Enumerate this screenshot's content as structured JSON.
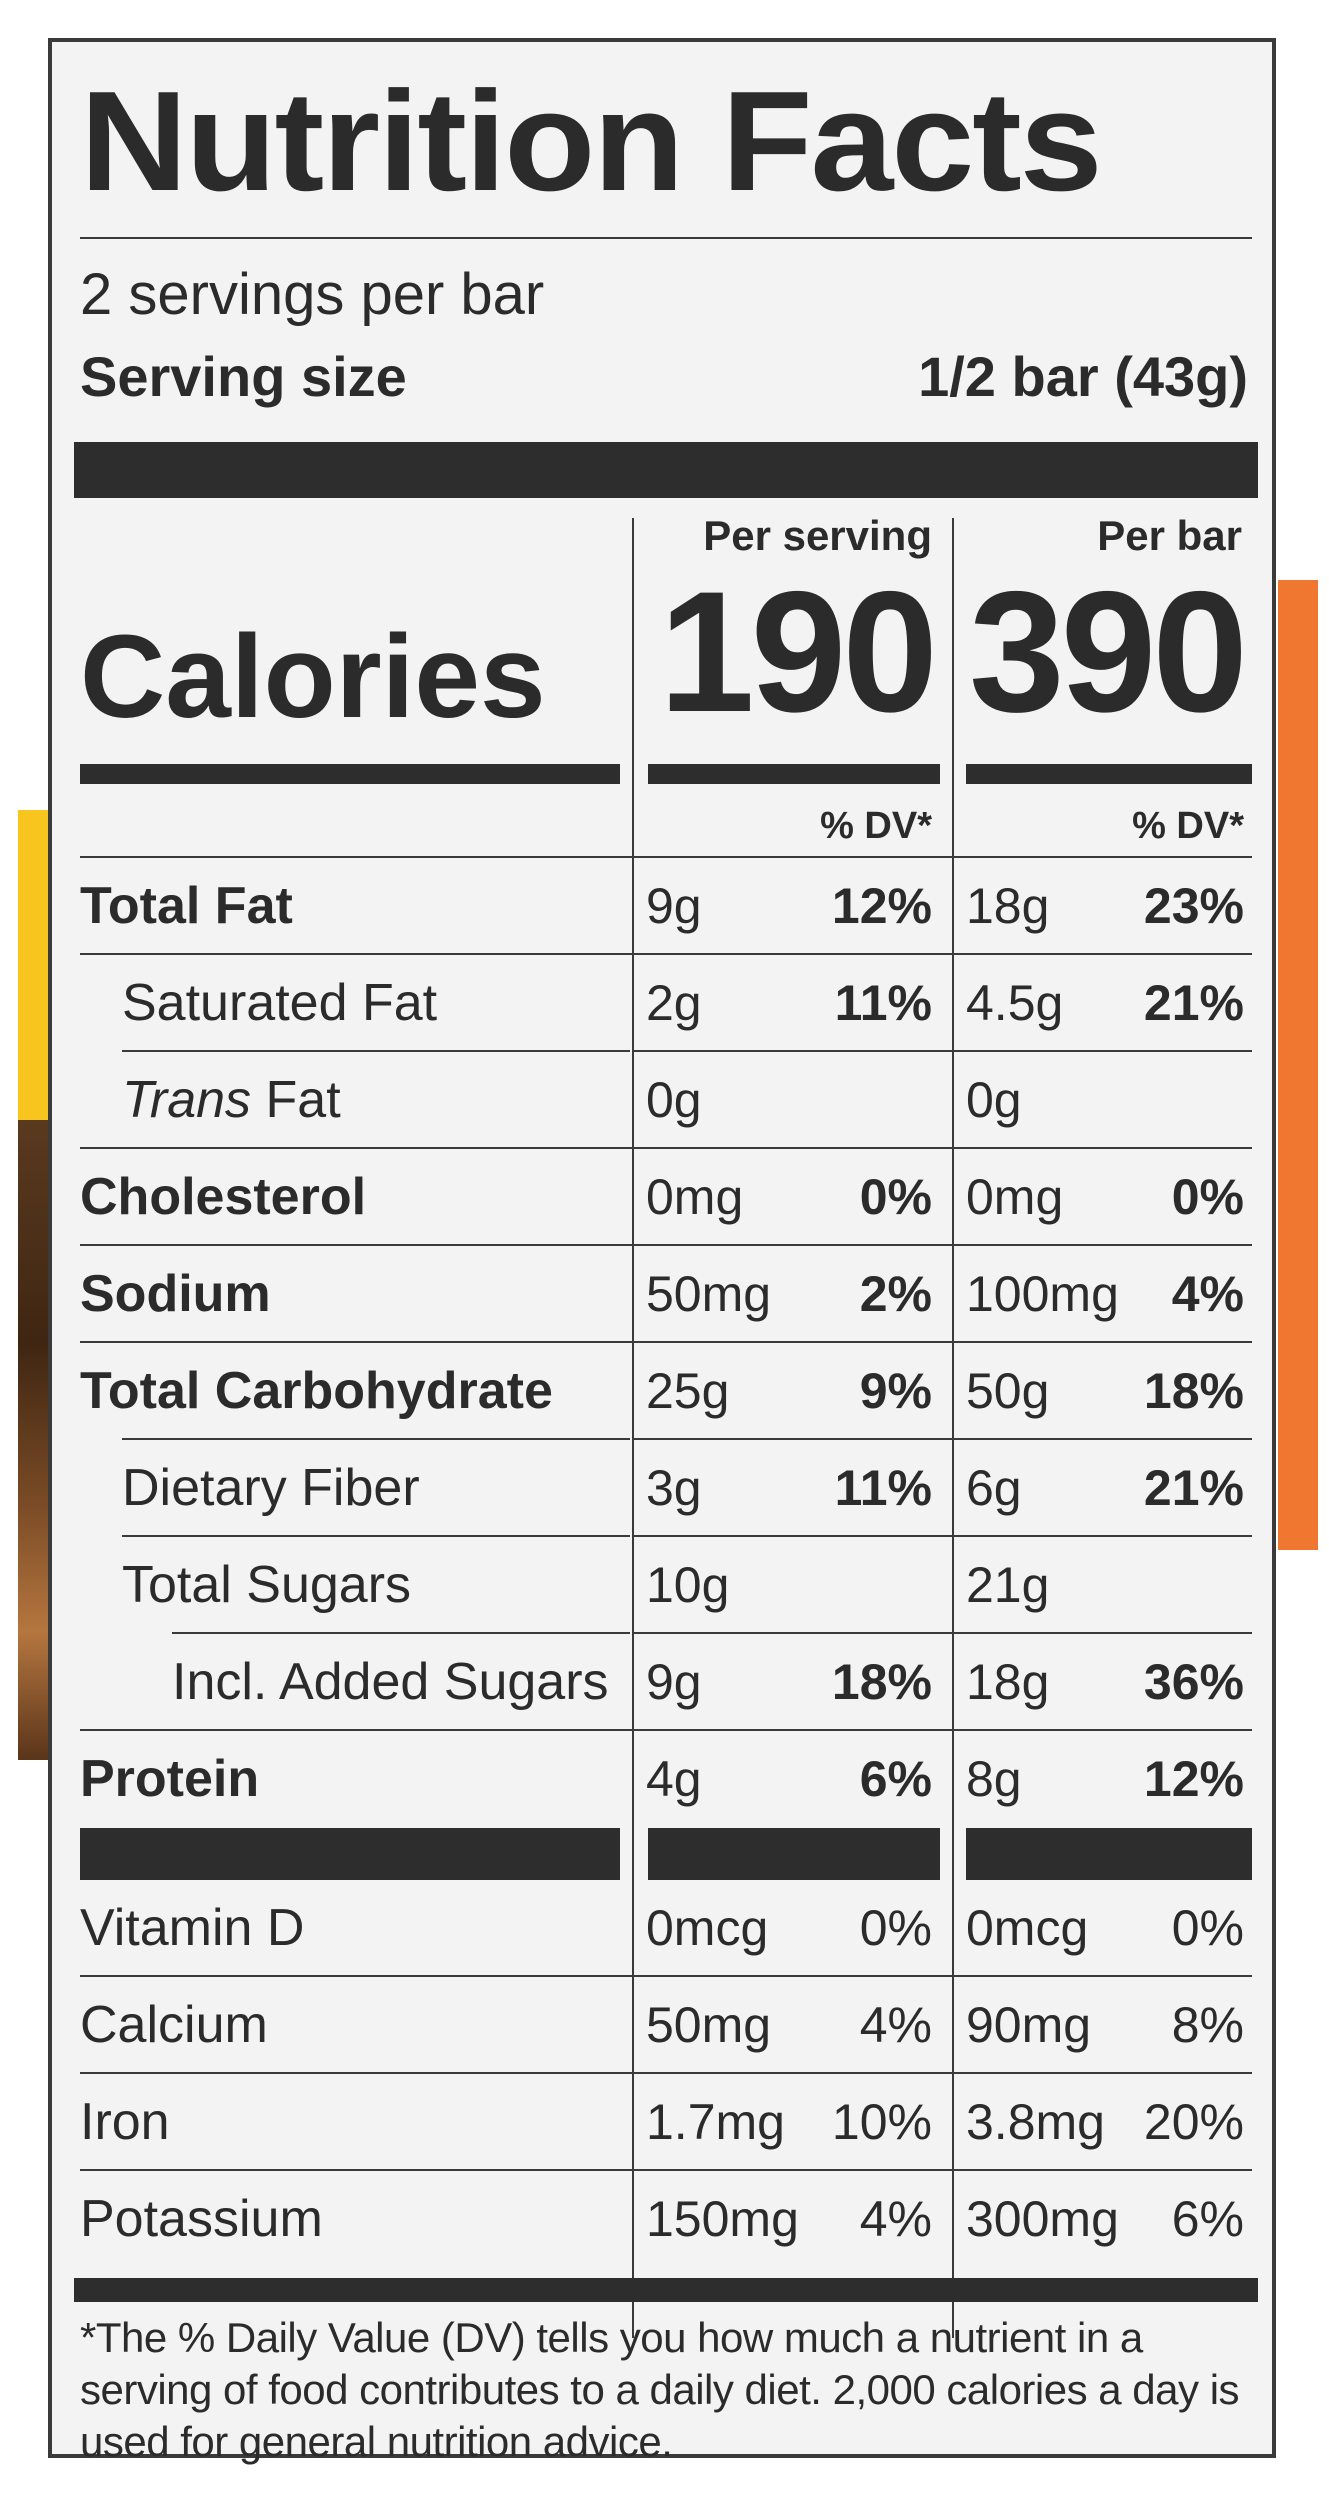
{
  "colors": {
    "yellow": "#f7c51d",
    "orange": "#f0772f",
    "ink": "#2b2b2b",
    "panel": "#f3f3f3"
  },
  "title": "Nutrition Facts",
  "servings_per_container": "2 servings per bar",
  "serving_size_label": "Serving size",
  "serving_size_value": "1/2 bar (43g)",
  "per_serving_label": "Per serving",
  "per_bar_label": "Per bar",
  "calories_label": "Calories",
  "calories_per_serving": "190",
  "calories_per_bar": "390",
  "dv_label": "% DV*",
  "nutrients": [
    {
      "name": "Total Fat",
      "amount_serving": "9g",
      "dv_serving": "12%",
      "amount_bar": "18g",
      "dv_bar": "23%"
    },
    {
      "name": "Saturated Fat",
      "amount_serving": "2g",
      "dv_serving": "11%",
      "amount_bar": "4.5g",
      "dv_bar": "21%"
    },
    {
      "name_italic": "Trans",
      "name_rest": " Fat",
      "amount_serving": "0g",
      "dv_serving": "",
      "amount_bar": "0g",
      "dv_bar": ""
    },
    {
      "name": "Cholesterol",
      "amount_serving": "0mg",
      "dv_serving": "0%",
      "amount_bar": "0mg",
      "dv_bar": "0%"
    },
    {
      "name": "Sodium",
      "amount_serving": "50mg",
      "dv_serving": "2%",
      "amount_bar": "100mg",
      "dv_bar": "4%"
    },
    {
      "name": "Total Carbohydrate",
      "amount_serving": "25g",
      "dv_serving": "9%",
      "amount_bar": "50g",
      "dv_bar": "18%"
    },
    {
      "name": "Dietary Fiber",
      "amount_serving": "3g",
      "dv_serving": "11%",
      "amount_bar": "6g",
      "dv_bar": "21%"
    },
    {
      "name": "Total Sugars",
      "amount_serving": "10g",
      "dv_serving": "",
      "amount_bar": "21g",
      "dv_bar": ""
    },
    {
      "name": "Incl. Added Sugars",
      "amount_serving": "9g",
      "dv_serving": "18%",
      "amount_bar": "18g",
      "dv_bar": "36%"
    },
    {
      "name": "Protein",
      "amount_serving": "4g",
      "dv_serving": "6%",
      "amount_bar": "8g",
      "dv_bar": "12%"
    }
  ],
  "vitamins": [
    {
      "name": "Vitamin D",
      "amount_serving": "0mcg",
      "dv_serving": "0%",
      "amount_bar": "0mcg",
      "dv_bar": "0%"
    },
    {
      "name": "Calcium",
      "amount_serving": "50mg",
      "dv_serving": "4%",
      "amount_bar": "90mg",
      "dv_bar": "8%"
    },
    {
      "name": "Iron",
      "amount_serving": "1.7mg",
      "dv_serving": "10%",
      "amount_bar": "3.8mg",
      "dv_bar": "20%"
    },
    {
      "name": "Potassium",
      "amount_serving": "150mg",
      "dv_serving": "4%",
      "amount_bar": "300mg",
      "dv_bar": "6%"
    }
  ],
  "footnote": "*The % Daily Value (DV) tells you how much a nutrient in a serving of food contributes to a daily diet. 2,000 calories a day is used for general nutrition advice."
}
